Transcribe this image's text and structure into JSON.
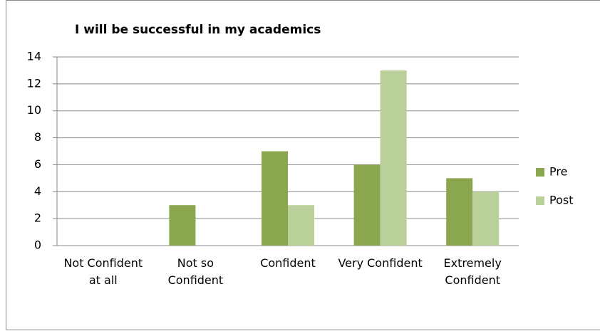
{
  "chart_data": {
    "type": "bar",
    "title": "I will be successful in my academics",
    "categories": [
      "Not Confident at all",
      "Not so Confident",
      "Confident",
      "Very Confident",
      "Extremely Confident"
    ],
    "series": [
      {
        "name": "Pre",
        "color": "#8aa64f",
        "values": [
          0,
          3,
          7,
          6,
          5
        ]
      },
      {
        "name": "Post",
        "color": "#b9d09a",
        "values": [
          0,
          0,
          3,
          13,
          4
        ]
      }
    ],
    "ylim": [
      0,
      14
    ],
    "yticks": [
      0,
      2,
      4,
      6,
      8,
      10,
      12,
      14
    ],
    "grid": true,
    "legend": "right"
  }
}
